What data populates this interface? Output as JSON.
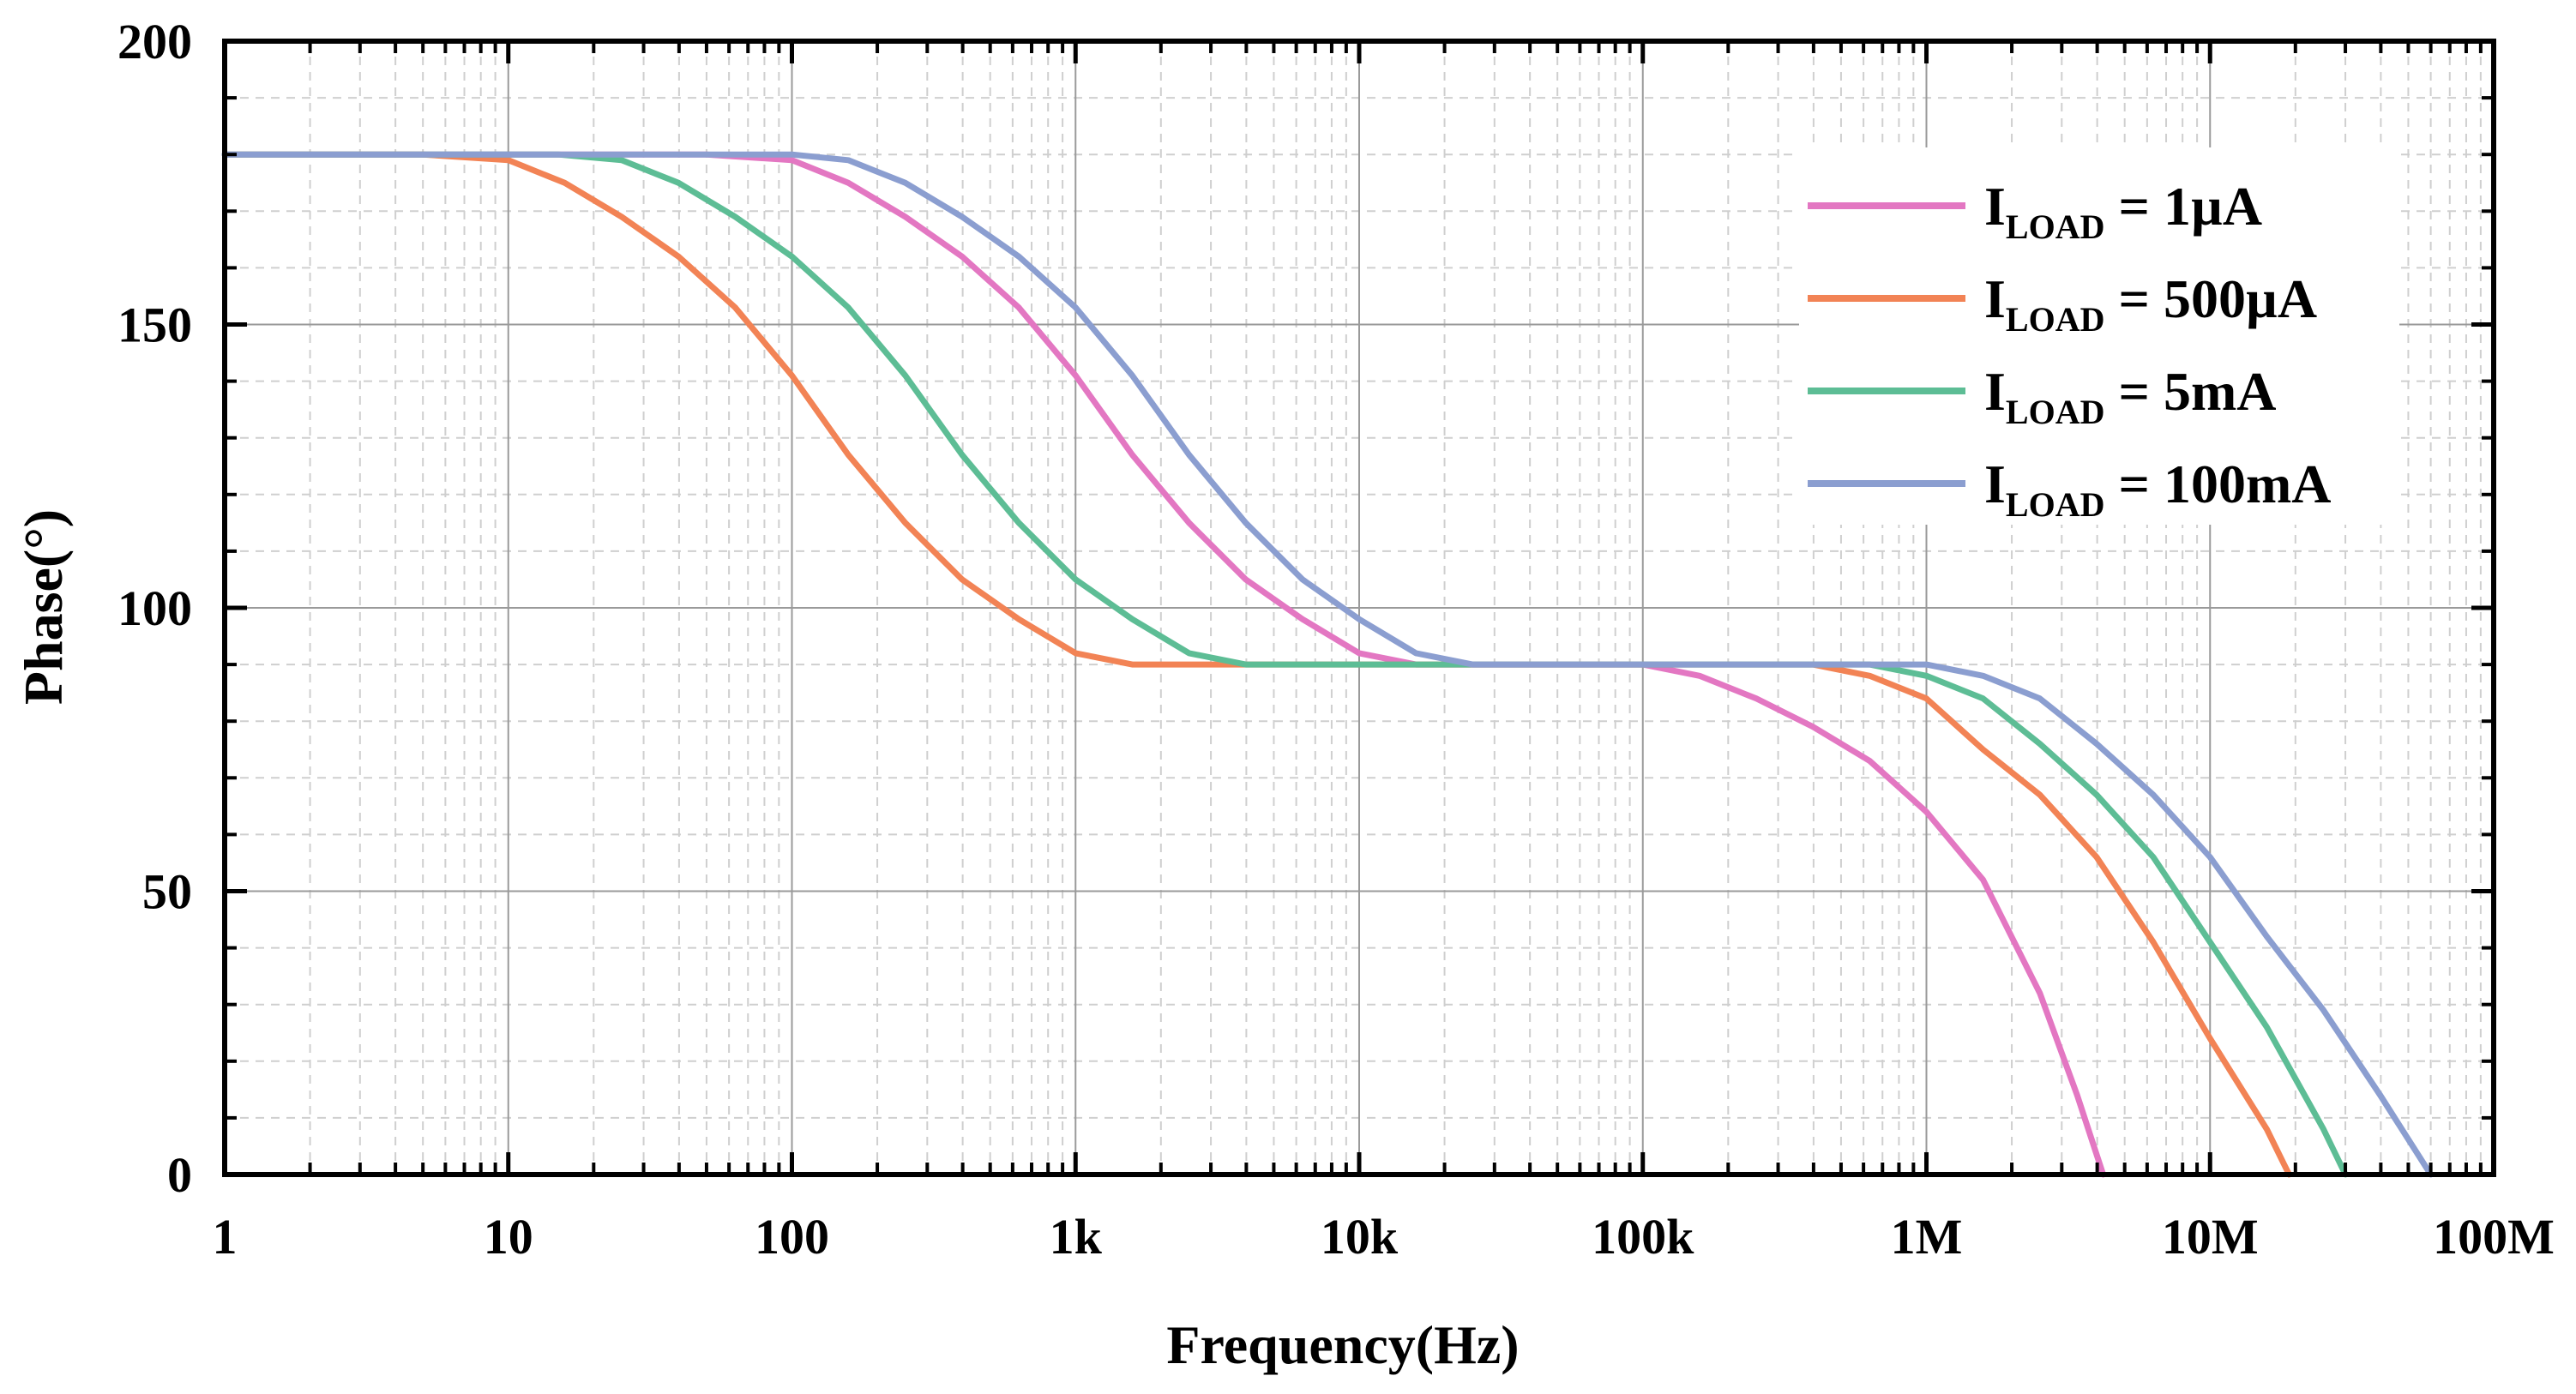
{
  "chart_data": {
    "type": "line",
    "title": "",
    "xlabel": "Frequency(Hz)",
    "ylabel": "Phase(°)",
    "xscale": "log",
    "xlim": [
      1,
      100000000
    ],
    "ylim": [
      0,
      200
    ],
    "grid": true,
    "legend_position": "top-right",
    "xticks": [
      {
        "value": 1,
        "label": "1"
      },
      {
        "value": 10,
        "label": "10"
      },
      {
        "value": 100,
        "label": "100"
      },
      {
        "value": 1000,
        "label": "1k"
      },
      {
        "value": 10000,
        "label": "10k"
      },
      {
        "value": 100000,
        "label": "100k"
      },
      {
        "value": 1000000,
        "label": "1M"
      },
      {
        "value": 10000000,
        "label": "10M"
      },
      {
        "value": 100000000,
        "label": "100M"
      }
    ],
    "yticks": [
      {
        "value": 0,
        "label": "0"
      },
      {
        "value": 50,
        "label": "50"
      },
      {
        "value": 100,
        "label": "100"
      },
      {
        "value": 150,
        "label": "150"
      },
      {
        "value": 200,
        "label": "200"
      }
    ],
    "series": [
      {
        "name": "ILOAD = 1µA",
        "legend_main": "I",
        "legend_sub": "LOAD",
        "legend_rest": " = 1µA",
        "color": "#e377c2",
        "x": [
          1,
          10,
          50,
          100,
          158,
          251,
          398,
          631,
          1000,
          1585,
          2512,
          3981,
          6310,
          10000,
          15849,
          25119,
          100000,
          158489,
          251189,
          398107,
          630957,
          1000000,
          1584893,
          2511886,
          3400000,
          4200000
        ],
        "y": [
          180,
          180,
          180,
          179,
          175,
          169,
          162,
          153,
          141,
          127,
          115,
          105,
          98,
          92,
          90,
          90,
          90,
          88,
          84,
          79,
          73,
          64,
          52,
          32,
          14,
          0
        ]
      },
      {
        "name": "ILOAD = 500µA",
        "legend_main": "I",
        "legend_sub": "LOAD",
        "legend_rest": " = 500µA",
        "color": "#f28355",
        "x": [
          1,
          5,
          10,
          15.8,
          25.1,
          39.8,
          63.1,
          100,
          158,
          251,
          398,
          631,
          1000,
          1585,
          2512,
          100000,
          398107,
          630957,
          1000000,
          1584893,
          2511886,
          3981072,
          6309573,
          10000000,
          15848932,
          19000000
        ],
        "y": [
          180,
          180,
          179,
          175,
          169,
          162,
          153,
          141,
          127,
          115,
          105,
          98,
          92,
          90,
          90,
          90,
          90,
          88,
          84,
          75,
          67,
          56,
          41,
          24,
          8,
          0
        ]
      },
      {
        "name": "ILOAD = 5mA",
        "legend_main": "I",
        "legend_sub": "LOAD",
        "legend_rest": " = 5mA",
        "color": "#5dbd95",
        "x": [
          1,
          15,
          25.1,
          39.8,
          63.1,
          100,
          158,
          251,
          398,
          631,
          1000,
          1585,
          2512,
          3981,
          100000,
          630957,
          1000000,
          1584893,
          2511886,
          3981072,
          6309573,
          10000000,
          15848932,
          25118864,
          30000000
        ],
        "y": [
          180,
          180,
          179,
          175,
          169,
          162,
          153,
          141,
          127,
          115,
          105,
          98,
          92,
          90,
          90,
          90,
          88,
          84,
          76,
          67,
          56,
          41,
          26,
          8,
          0
        ]
      },
      {
        "name": "ILOAD = 100mA",
        "legend_main": "I",
        "legend_sub": "LOAD",
        "legend_rest": " = 100mA",
        "color": "#8b9ed0",
        "x": [
          1,
          60,
          100,
          158,
          251,
          398,
          631,
          1000,
          1585,
          2512,
          3981,
          6310,
          10000,
          15849,
          25119,
          100000,
          1000000,
          1584893,
          2511886,
          3981072,
          6309573,
          10000000,
          15848932,
          25118864,
          39810717,
          60000000
        ],
        "y": [
          180,
          180,
          180,
          179,
          175,
          169,
          162,
          153,
          141,
          127,
          115,
          105,
          98,
          92,
          90,
          90,
          90,
          88,
          84,
          76,
          67,
          56,
          42,
          29,
          14,
          0
        ]
      }
    ]
  }
}
